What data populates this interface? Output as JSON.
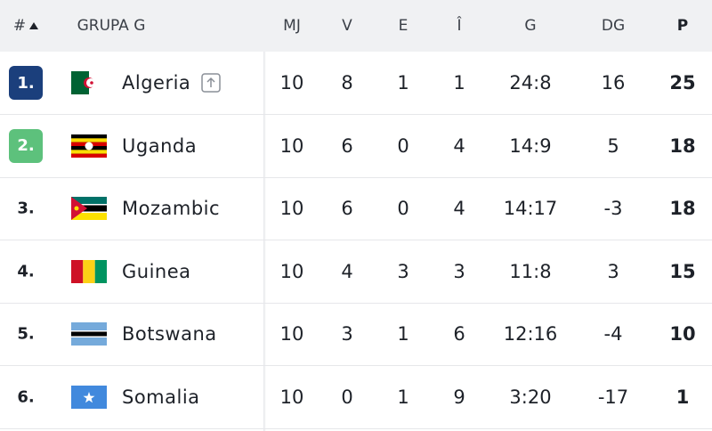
{
  "header": {
    "rank": "#",
    "group": "GRUPA G",
    "columns": [
      "MJ",
      "V",
      "E",
      "Î",
      "G",
      "DG",
      "P"
    ]
  },
  "table": {
    "rows": [
      [
        "1.",
        "Algeria",
        10,
        8,
        1,
        1,
        "24:8",
        16,
        25
      ],
      [
        "2.",
        "Uganda",
        10,
        6,
        0,
        4,
        "14:9",
        5,
        18
      ],
      [
        "3.",
        "Mozambic",
        10,
        6,
        0,
        4,
        "14:17",
        -3,
        18
      ],
      [
        "4.",
        "Guinea",
        10,
        4,
        3,
        3,
        "11:8",
        3,
        15
      ],
      [
        "5.",
        "Botswana",
        10,
        3,
        1,
        6,
        "12:16",
        -4,
        10
      ],
      [
        "6.",
        "Somalia",
        10,
        0,
        1,
        9,
        "3:20",
        -17,
        1
      ]
    ]
  }
}
